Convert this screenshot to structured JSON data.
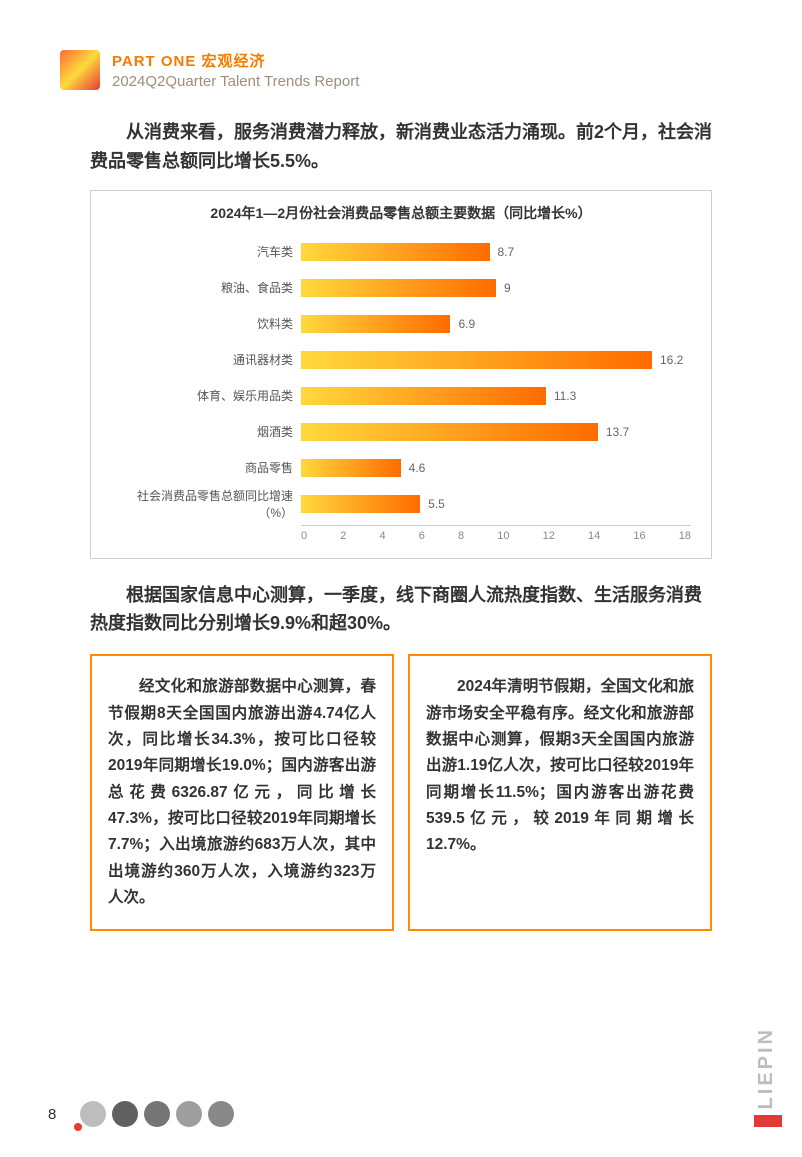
{
  "header": {
    "part": "PART ONE  宏观经济",
    "report": "2024Q2Quarter Talent Trends Report"
  },
  "intro": "从消费来看，服务消费潜力释放，新消费业态活力涌现。前2个月，社会消费品零售总额同比增长5.5%。",
  "chart": {
    "type": "bar",
    "title": "2024年1—2月份社会消费品零售总额主要数据（同比增长%）",
    "categories": [
      "汽车类",
      "粮油、食品类",
      "饮料类",
      "通讯器材类",
      "体育、娱乐用品类",
      "烟酒类",
      "商品零售",
      "社会消费品零售总额同比增速（%）"
    ],
    "values": [
      8.7,
      9,
      6.9,
      16.2,
      11.3,
      13.7,
      4.6,
      5.5
    ],
    "xmax": 18,
    "xticks": [
      0,
      2,
      4,
      6,
      8,
      10,
      12,
      14,
      16,
      18
    ],
    "bar_gradient_start": "#ffd93d",
    "bar_gradient_end": "#ff6b00",
    "label_fontsize": 12,
    "title_fontsize": 14,
    "background_color": "#ffffff",
    "border_color": "#d0d0d0"
  },
  "mid": "根据国家信息中心测算，一季度，线下商圈人流热度指数、生活服务消费热度指数同比分别增长9.9%和超30%。",
  "boxes": {
    "border_color": "#ff8c00",
    "left": "经文化和旅游部数据中心测算，春节假期8天全国国内旅游出游4.74亿人次，同比增长34.3%，按可比口径较2019年同期增长19.0%；国内游客出游总花费6326.87亿元，同比增长47.3%，按可比口径较2019年同期增长7.7%；入出境旅游约683万人次，其中出境游约360万人次，入境游约323万人次。",
    "right": "2024年清明节假期，全国文化和旅游市场安全平稳有序。经文化和旅游部数据中心测算，假期3天全国国内旅游出游1.19亿人次，按可比口径较2019年同期增长11.5%；国内游客出游花费539.5亿元，较2019年同期增长12.7%。"
  },
  "footer": {
    "page": "8",
    "brand": "LIEPIN",
    "brand_bar_color": "#e53935"
  }
}
